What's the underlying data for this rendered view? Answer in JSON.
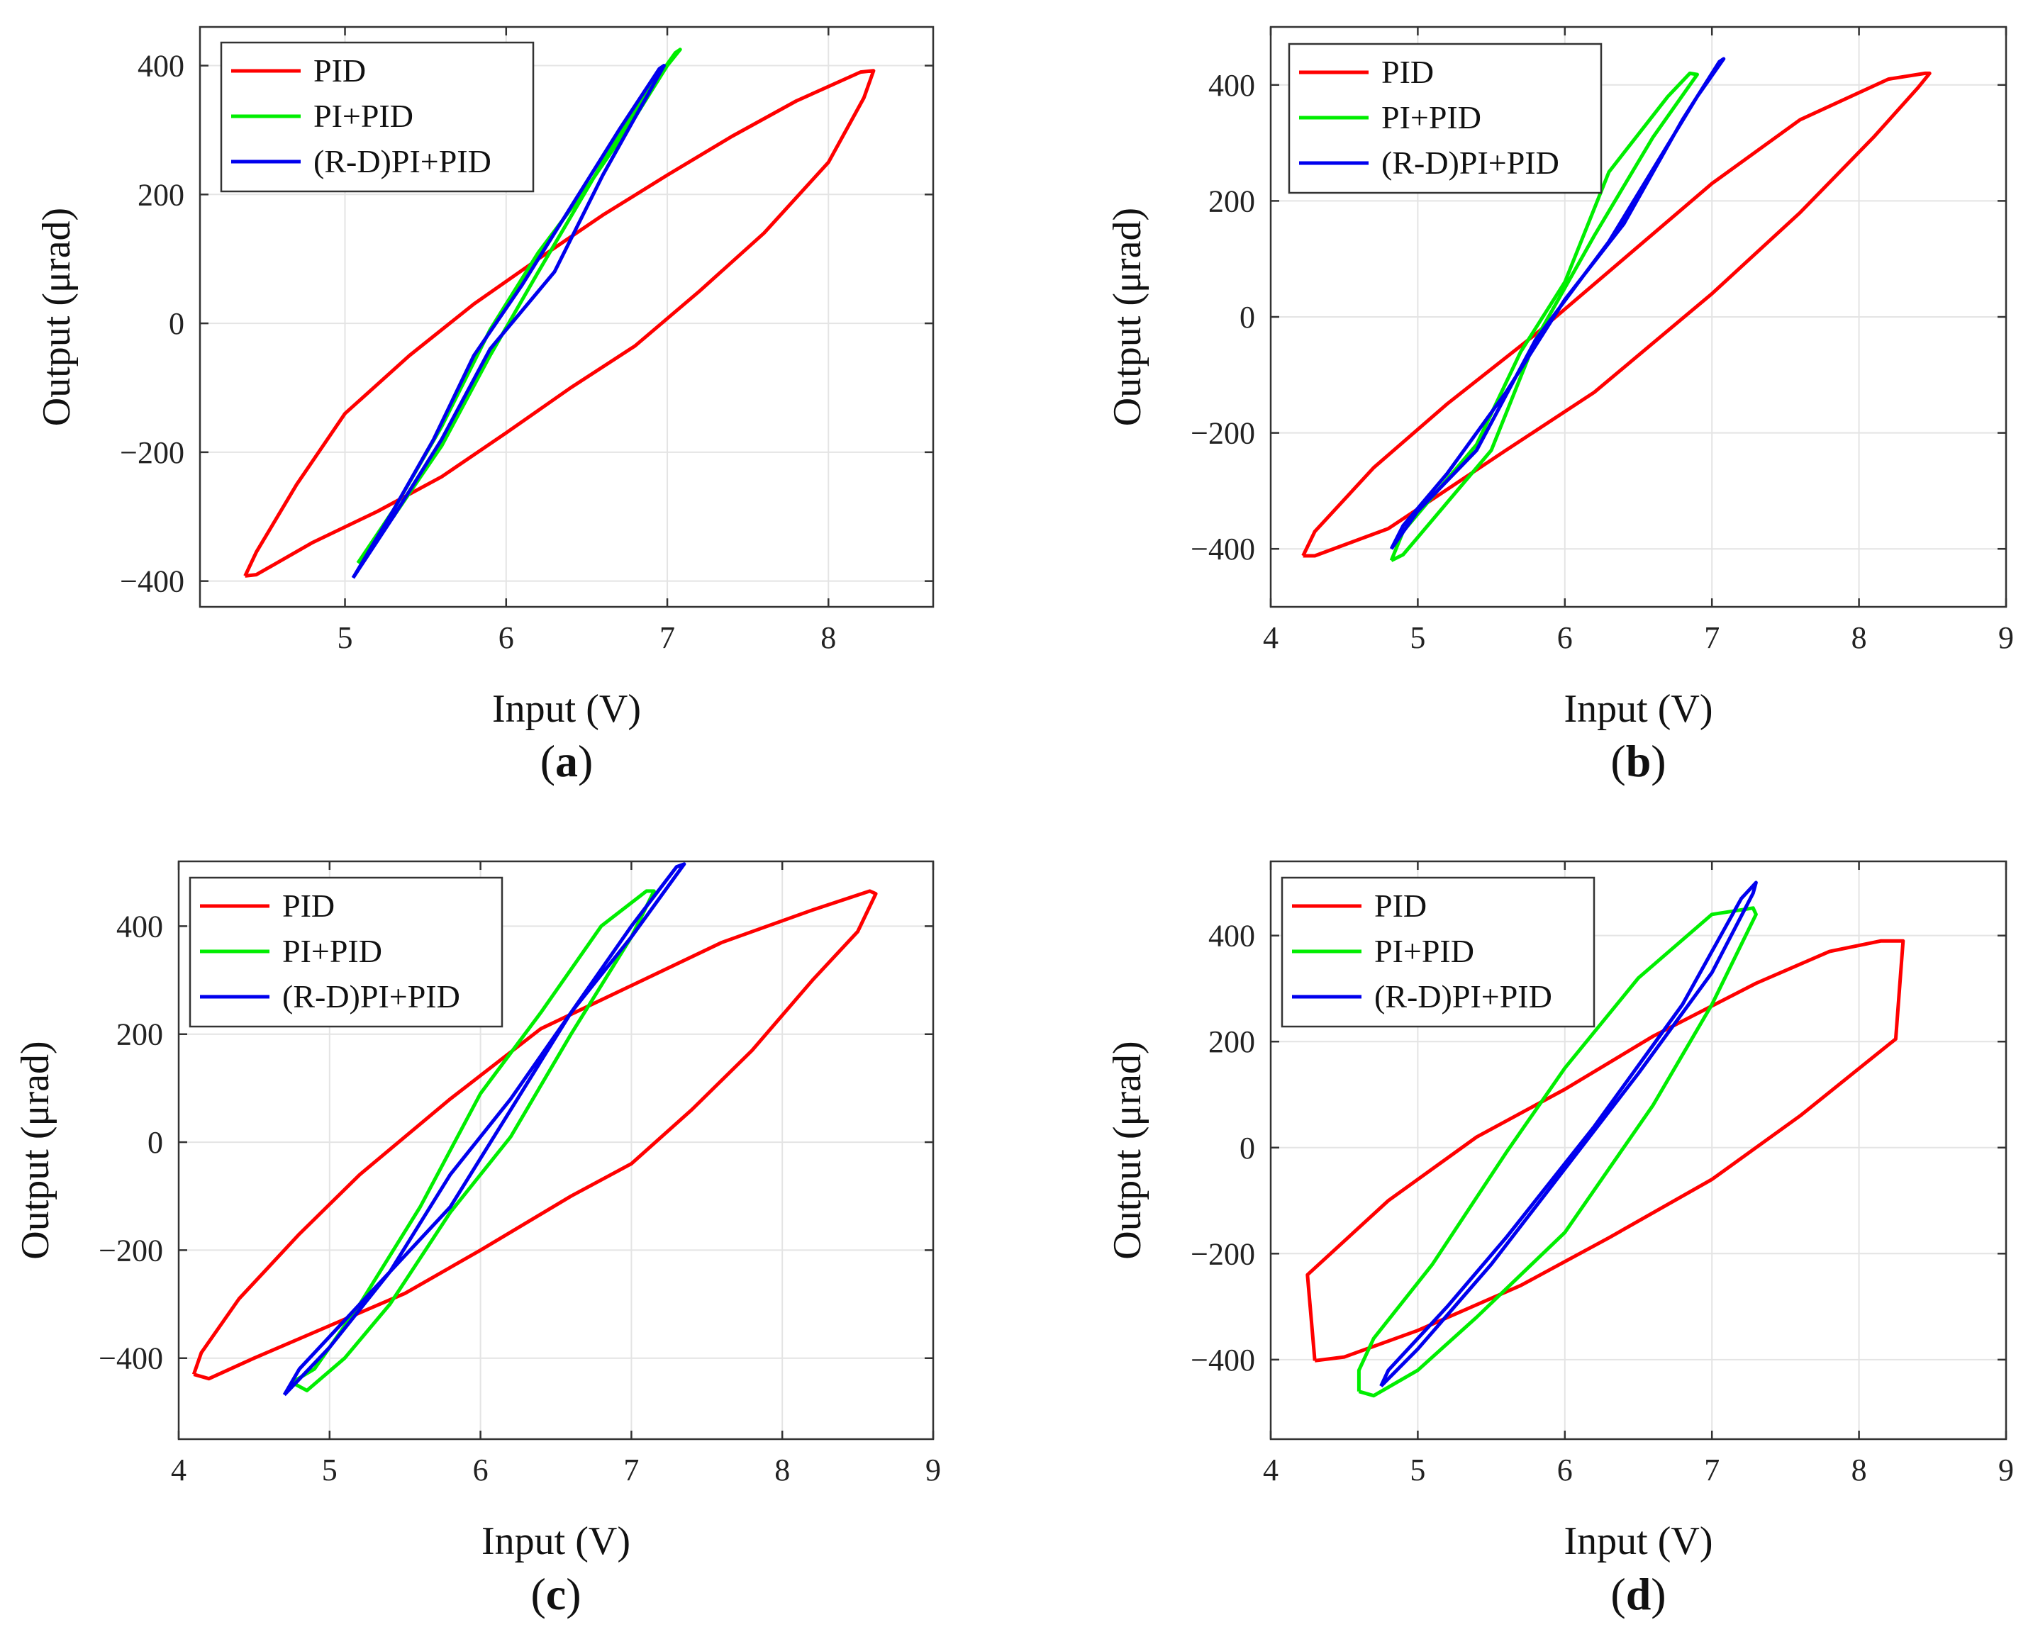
{
  "figure": {
    "series_colors": {
      "PID": "#ff0000",
      "PI+PID": "#00ee00",
      "(R-D)PI+PID": "#0000ee"
    }
  },
  "chart_data": [
    {
      "type": "line",
      "panel": "a",
      "caption": "(a)",
      "caption_letter": "a",
      "xlabel": "Input (V)",
      "ylabel": "Output (μrad)",
      "xlim": [
        4.1,
        8.65
      ],
      "ylim": [
        -440,
        460
      ],
      "xticks": [
        5,
        6,
        7,
        8
      ],
      "xtick_labels": [
        "5",
        "6",
        "7",
        "8"
      ],
      "yticks": [
        -400,
        -200,
        0,
        200,
        400
      ],
      "ytick_labels": [
        "−400",
        "−200",
        "0",
        "200",
        "400"
      ],
      "grid": true,
      "legend": {
        "position": "top-left",
        "entries": [
          "PID",
          "PI+PID",
          "(R-D)PI+PID"
        ]
      },
      "series": [
        {
          "name": "PID",
          "color": "#ff0000",
          "points": [
            [
              4.38,
              -392
            ],
            [
              4.45,
              -390
            ],
            [
              4.8,
              -340
            ],
            [
              5.2,
              -292
            ],
            [
              5.6,
              -238
            ],
            [
              6.0,
              -170
            ],
            [
              6.4,
              -100
            ],
            [
              6.8,
              -35
            ],
            [
              7.2,
              50
            ],
            [
              7.6,
              140
            ],
            [
              8.0,
              250
            ],
            [
              8.22,
              350
            ],
            [
              8.28,
              392
            ],
            [
              8.2,
              390
            ],
            [
              7.8,
              345
            ],
            [
              7.4,
              290
            ],
            [
              7.0,
              230
            ],
            [
              6.6,
              168
            ],
            [
              6.2,
              100
            ],
            [
              5.8,
              30
            ],
            [
              5.4,
              -50
            ],
            [
              5.0,
              -140
            ],
            [
              4.7,
              -250
            ],
            [
              4.45,
              -355
            ],
            [
              4.38,
              -392
            ]
          ]
        },
        {
          "name": "PI+PID",
          "color": "#00ee00",
          "points": [
            [
              5.08,
              -372
            ],
            [
              5.3,
              -300
            ],
            [
              5.6,
              -190
            ],
            [
              5.9,
              -50
            ],
            [
              6.2,
              80
            ],
            [
              6.6,
              250
            ],
            [
              6.85,
              350
            ],
            [
              7.05,
              420
            ],
            [
              7.08,
              425
            ],
            [
              7.0,
              400
            ],
            [
              6.8,
              320
            ],
            [
              6.5,
              210
            ],
            [
              6.2,
              110
            ],
            [
              5.9,
              -10
            ],
            [
              5.6,
              -160
            ],
            [
              5.3,
              -290
            ],
            [
              5.08,
              -372
            ]
          ]
        },
        {
          "name": "(R-D)PI+PID",
          "color": "#0000ee",
          "points": [
            [
              5.05,
              -395
            ],
            [
              5.3,
              -300
            ],
            [
              5.6,
              -180
            ],
            [
              5.9,
              -40
            ],
            [
              6.3,
              80
            ],
            [
              6.6,
              230
            ],
            [
              6.98,
              400
            ],
            [
              6.95,
              395
            ],
            [
              6.7,
              300
            ],
            [
              6.4,
              180
            ],
            [
              6.1,
              60
            ],
            [
              5.8,
              -50
            ],
            [
              5.55,
              -180
            ],
            [
              5.3,
              -290
            ],
            [
              5.05,
              -395
            ]
          ]
        }
      ]
    },
    {
      "type": "line",
      "panel": "b",
      "caption": "(b)",
      "caption_letter": "b",
      "xlabel": "Input (V)",
      "ylabel": "Output (μrad)",
      "xlim": [
        4,
        9
      ],
      "ylim": [
        -500,
        500
      ],
      "xticks": [
        4,
        5,
        6,
        7,
        8,
        9
      ],
      "xtick_labels": [
        "4",
        "5",
        "6",
        "7",
        "8",
        "9"
      ],
      "yticks": [
        -400,
        -200,
        0,
        200,
        400
      ],
      "ytick_labels": [
        "−400",
        "−200",
        "0",
        "200",
        "400"
      ],
      "grid": true,
      "legend": {
        "position": "top-left",
        "entries": [
          "PID",
          "PI+PID",
          "(R-D)PI+PID"
        ]
      },
      "series": [
        {
          "name": "PID",
          "color": "#ff0000",
          "points": [
            [
              4.22,
              -412
            ],
            [
              4.3,
              -412
            ],
            [
              4.8,
              -365
            ],
            [
              5.6,
              -230
            ],
            [
              6.2,
              -130
            ],
            [
              7.0,
              40
            ],
            [
              7.6,
              180
            ],
            [
              8.1,
              310
            ],
            [
              8.4,
              395
            ],
            [
              8.48,
              420
            ],
            [
              8.45,
              420
            ],
            [
              8.2,
              410
            ],
            [
              7.6,
              340
            ],
            [
              7.0,
              230
            ],
            [
              6.4,
              100
            ],
            [
              5.8,
              -30
            ],
            [
              5.2,
              -150
            ],
            [
              4.7,
              -260
            ],
            [
              4.3,
              -370
            ],
            [
              4.22,
              -412
            ]
          ]
        },
        {
          "name": "PI+PID",
          "color": "#00ee00",
          "points": [
            [
              4.82,
              -420
            ],
            [
              4.9,
              -410
            ],
            [
              5.2,
              -320
            ],
            [
              5.5,
              -230
            ],
            [
              5.8,
              -40
            ],
            [
              6.2,
              140
            ],
            [
              6.6,
              310
            ],
            [
              6.9,
              418
            ],
            [
              6.85,
              420
            ],
            [
              6.7,
              380
            ],
            [
              6.3,
              250
            ],
            [
              6.0,
              60
            ],
            [
              5.7,
              -60
            ],
            [
              5.4,
              -220
            ],
            [
              5.1,
              -310
            ],
            [
              4.9,
              -370
            ],
            [
              4.82,
              -420
            ]
          ]
        },
        {
          "name": "(R-D)PI+PID",
          "color": "#0000ee",
          "points": [
            [
              4.82,
              -400
            ],
            [
              5.0,
              -335
            ],
            [
              5.4,
              -230
            ],
            [
              5.8,
              -40
            ],
            [
              6.3,
              130
            ],
            [
              6.9,
              380
            ],
            [
              7.08,
              445
            ],
            [
              7.05,
              440
            ],
            [
              6.8,
              340
            ],
            [
              6.4,
              160
            ],
            [
              6.0,
              30
            ],
            [
              5.6,
              -130
            ],
            [
              5.2,
              -270
            ],
            [
              4.9,
              -360
            ],
            [
              4.82,
              -400
            ]
          ]
        }
      ]
    },
    {
      "type": "line",
      "panel": "c",
      "caption": "(c)",
      "caption_letter": "c",
      "xlabel": "Input (V)",
      "ylabel": "Output (μrad)",
      "xlim": [
        4,
        9
      ],
      "ylim": [
        -550,
        520
      ],
      "xticks": [
        4,
        5,
        6,
        7,
        8,
        9
      ],
      "xtick_labels": [
        "4",
        "5",
        "6",
        "7",
        "8",
        "9"
      ],
      "yticks": [
        -400,
        -200,
        0,
        200,
        400
      ],
      "ytick_labels": [
        "−400",
        "−200",
        "0",
        "200",
        "400"
      ],
      "grid": true,
      "legend": {
        "position": "top-left",
        "entries": [
          "PID",
          "PI+PID",
          "(R-D)PI+PID"
        ]
      },
      "series": [
        {
          "name": "PID",
          "color": "#ff0000",
          "points": [
            [
              4.1,
              -430
            ],
            [
              4.2,
              -438
            ],
            [
              4.5,
              -400
            ],
            [
              5.0,
              -340
            ],
            [
              5.5,
              -280
            ],
            [
              6.0,
              -200
            ],
            [
              6.6,
              -100
            ],
            [
              7.0,
              -40
            ],
            [
              7.4,
              60
            ],
            [
              7.8,
              170
            ],
            [
              8.2,
              300
            ],
            [
              8.5,
              390
            ],
            [
              8.62,
              460
            ],
            [
              8.58,
              465
            ],
            [
              8.2,
              430
            ],
            [
              7.6,
              370
            ],
            [
              7.0,
              290
            ],
            [
              6.4,
              210
            ],
            [
              5.8,
              80
            ],
            [
              5.2,
              -60
            ],
            [
              4.8,
              -170
            ],
            [
              4.4,
              -290
            ],
            [
              4.15,
              -390
            ],
            [
              4.1,
              -430
            ]
          ]
        },
        {
          "name": "PI+PID",
          "color": "#00ee00",
          "points": [
            [
              4.75,
              -445
            ],
            [
              4.85,
              -460
            ],
            [
              5.1,
              -400
            ],
            [
              5.4,
              -300
            ],
            [
              5.8,
              -130
            ],
            [
              6.2,
              10
            ],
            [
              6.6,
              200
            ],
            [
              7.0,
              380
            ],
            [
              7.15,
              465
            ],
            [
              7.1,
              465
            ],
            [
              6.8,
              400
            ],
            [
              6.4,
              240
            ],
            [
              6.0,
              90
            ],
            [
              5.6,
              -120
            ],
            [
              5.2,
              -300
            ],
            [
              4.9,
              -420
            ],
            [
              4.75,
              -445
            ]
          ]
        },
        {
          "name": "(R-D)PI+PID",
          "color": "#0000ee",
          "points": [
            [
              4.7,
              -468
            ],
            [
              4.8,
              -420
            ],
            [
              5.0,
              -360
            ],
            [
              5.4,
              -240
            ],
            [
              5.8,
              -60
            ],
            [
              6.2,
              80
            ],
            [
              6.6,
              240
            ],
            [
              7.0,
              380
            ],
            [
              7.35,
              515
            ],
            [
              7.3,
              510
            ],
            [
              7.0,
              400
            ],
            [
              6.6,
              240
            ],
            [
              6.2,
              60
            ],
            [
              5.8,
              -120
            ],
            [
              5.4,
              -240
            ],
            [
              5.0,
              -380
            ],
            [
              4.7,
              -468
            ]
          ]
        }
      ]
    },
    {
      "type": "line",
      "panel": "d",
      "caption": "(d)",
      "caption_letter": "d",
      "xlabel": "Input (V)",
      "ylabel": "Output (μrad)",
      "xlim": [
        4,
        9
      ],
      "ylim": [
        -550,
        540
      ],
      "xticks": [
        4,
        5,
        6,
        7,
        8,
        9
      ],
      "xtick_labels": [
        "4",
        "5",
        "6",
        "7",
        "8",
        "9"
      ],
      "yticks": [
        -400,
        -200,
        0,
        200,
        400
      ],
      "ytick_labels": [
        "−400",
        "−200",
        "0",
        "200",
        "400"
      ],
      "grid": true,
      "legend": {
        "position": "top-left",
        "entries": [
          "PID",
          "PI+PID",
          "(R-D)PI+PID"
        ]
      },
      "series": [
        {
          "name": "PID",
          "color": "#ff0000",
          "points": [
            [
              4.3,
              -402
            ],
            [
              4.5,
              -395
            ],
            [
              5.0,
              -345
            ],
            [
              5.7,
              -260
            ],
            [
              6.3,
              -170
            ],
            [
              7.0,
              -60
            ],
            [
              7.6,
              60
            ],
            [
              8.25,
              205
            ],
            [
              8.3,
              390
            ],
            [
              8.15,
              390
            ],
            [
              7.8,
              370
            ],
            [
              7.3,
              310
            ],
            [
              6.6,
              210
            ],
            [
              6.0,
              110
            ],
            [
              5.4,
              20
            ],
            [
              4.8,
              -100
            ],
            [
              4.25,
              -240
            ],
            [
              4.3,
              -402
            ]
          ]
        },
        {
          "name": "PI+PID",
          "color": "#00ee00",
          "points": [
            [
              4.6,
              -460
            ],
            [
              4.7,
              -468
            ],
            [
              5.0,
              -420
            ],
            [
              5.4,
              -320
            ],
            [
              6.0,
              -160
            ],
            [
              6.6,
              80
            ],
            [
              7.0,
              270
            ],
            [
              7.3,
              440
            ],
            [
              7.28,
              452
            ],
            [
              7.0,
              440
            ],
            [
              6.5,
              320
            ],
            [
              6.0,
              150
            ],
            [
              5.6,
              -10
            ],
            [
              5.1,
              -220
            ],
            [
              4.7,
              -360
            ],
            [
              4.6,
              -420
            ],
            [
              4.6,
              -460
            ]
          ]
        },
        {
          "name": "(R-D)PI+PID",
          "color": "#0000ee",
          "points": [
            [
              4.75,
              -450
            ],
            [
              4.8,
              -420
            ],
            [
              5.2,
              -300
            ],
            [
              5.6,
              -170
            ],
            [
              6.2,
              40
            ],
            [
              6.8,
              270
            ],
            [
              7.2,
              470
            ],
            [
              7.3,
              500
            ],
            [
              7.28,
              480
            ],
            [
              7.0,
              330
            ],
            [
              6.5,
              140
            ],
            [
              6.0,
              -40
            ],
            [
              5.5,
              -220
            ],
            [
              5.0,
              -380
            ],
            [
              4.75,
              -450
            ]
          ]
        }
      ]
    }
  ]
}
